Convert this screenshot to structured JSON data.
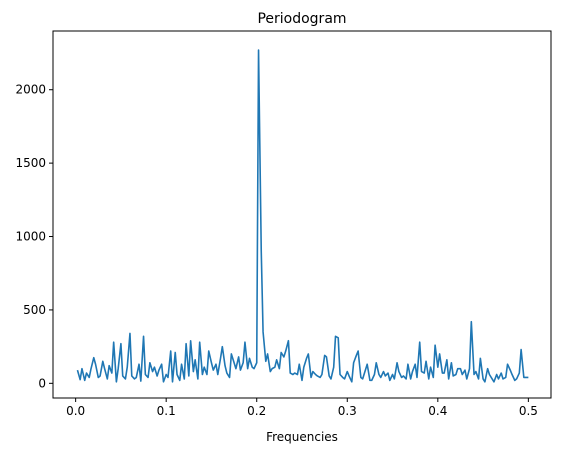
{
  "chart_data": {
    "type": "line",
    "title": "Periodogram",
    "xlabel": "Frequencies",
    "ylabel": "",
    "xlim": [
      -0.025,
      0.525
    ],
    "ylim": [
      -100,
      2400
    ],
    "xticks": [
      0.0,
      0.1,
      0.2,
      0.3,
      0.4,
      0.5
    ],
    "xtick_labels": [
      "0.0",
      "0.1",
      "0.2",
      "0.3",
      "0.4",
      "0.5"
    ],
    "yticks": [
      0,
      500,
      1000,
      1500,
      2000
    ],
    "ytick_labels": [
      "0",
      "500",
      "1000",
      "1500",
      "2000"
    ],
    "grid": false,
    "legend": "none",
    "line_color": "#1f77b4",
    "series": [
      {
        "x": [
          0.002,
          0.005,
          0.007,
          0.01,
          0.012,
          0.015,
          0.017,
          0.02,
          0.022,
          0.025,
          0.027,
          0.03,
          0.032,
          0.035,
          0.037,
          0.04,
          0.042,
          0.045,
          0.047,
          0.05,
          0.052,
          0.055,
          0.057,
          0.06,
          0.062,
          0.065,
          0.067,
          0.07,
          0.072,
          0.075,
          0.077,
          0.08,
          0.082,
          0.085,
          0.087,
          0.09,
          0.092,
          0.095,
          0.097,
          0.1,
          0.102,
          0.105,
          0.107,
          0.11,
          0.112,
          0.115,
          0.117,
          0.12,
          0.122,
          0.125,
          0.127,
          0.13,
          0.132,
          0.135,
          0.137,
          0.14,
          0.142,
          0.145,
          0.147,
          0.15,
          0.152,
          0.155,
          0.157,
          0.16,
          0.162,
          0.165,
          0.167,
          0.17,
          0.172,
          0.175,
          0.177,
          0.18,
          0.182,
          0.185,
          0.187,
          0.19,
          0.192,
          0.195,
          0.197,
          0.2,
          0.202,
          0.205,
          0.207,
          0.21,
          0.212,
          0.215,
          0.217,
          0.22,
          0.222,
          0.225,
          0.227,
          0.23,
          0.232,
          0.235,
          0.237,
          0.24,
          0.242,
          0.245,
          0.247,
          0.25,
          0.252,
          0.255,
          0.257,
          0.26,
          0.262,
          0.265,
          0.267,
          0.27,
          0.272,
          0.275,
          0.277,
          0.28,
          0.282,
          0.285,
          0.287,
          0.29,
          0.292,
          0.295,
          0.297,
          0.3,
          0.302,
          0.305,
          0.307,
          0.31,
          0.312,
          0.315,
          0.317,
          0.32,
          0.322,
          0.325,
          0.327,
          0.33,
          0.332,
          0.335,
          0.337,
          0.34,
          0.342,
          0.345,
          0.347,
          0.35,
          0.352,
          0.355,
          0.357,
          0.36,
          0.362,
          0.365,
          0.367,
          0.37,
          0.372,
          0.375,
          0.377,
          0.38,
          0.382,
          0.385,
          0.387,
          0.39,
          0.392,
          0.395,
          0.397,
          0.4,
          0.402,
          0.405,
          0.407,
          0.41,
          0.412,
          0.415,
          0.417,
          0.42,
          0.422,
          0.425,
          0.427,
          0.43,
          0.432,
          0.435,
          0.437,
          0.44,
          0.442,
          0.445,
          0.447,
          0.45,
          0.452,
          0.455,
          0.457,
          0.46,
          0.462,
          0.465,
          0.467,
          0.47,
          0.472,
          0.475,
          0.477,
          0.48,
          0.482,
          0.485,
          0.487,
          0.49,
          0.492,
          0.495,
          0.497,
          0.5
        ],
        "y": [
          90,
          25,
          100,
          20,
          70,
          40,
          100,
          175,
          130,
          40,
          50,
          150,
          100,
          30,
          120,
          70,
          280,
          10,
          100,
          270,
          50,
          30,
          110,
          340,
          50,
          30,
          40,
          130,
          15,
          320,
          60,
          40,
          140,
          80,
          110,
          50,
          90,
          130,
          10,
          60,
          40,
          220,
          10,
          210,
          60,
          20,
          130,
          30,
          270,
          50,
          290,
          80,
          160,
          30,
          280,
          60,
          110,
          60,
          220,
          140,
          90,
          130,
          60,
          170,
          250,
          120,
          70,
          40,
          200,
          140,
          100,
          180,
          90,
          140,
          280,
          100,
          170,
          110,
          100,
          140,
          2270,
          900,
          350,
          150,
          200,
          80,
          100,
          110,
          160,
          100,
          210,
          180,
          220,
          290,
          70,
          60,
          70,
          60,
          130,
          20,
          110,
          170,
          200,
          40,
          80,
          60,
          50,
          40,
          60,
          190,
          180,
          50,
          30,
          110,
          320,
          310,
          60,
          40,
          30,
          80,
          50,
          10,
          140,
          190,
          220,
          40,
          30,
          90,
          130,
          20,
          20,
          60,
          140,
          60,
          40,
          80,
          50,
          70,
          20,
          60,
          30,
          140,
          80,
          40,
          50,
          30,
          130,
          30,
          80,
          130,
          40,
          280,
          80,
          70,
          150,
          30,
          110,
          40,
          260,
          110,
          200,
          70,
          70,
          160,
          30,
          140,
          50,
          60,
          100,
          100,
          60,
          90,
          30,
          100,
          420,
          60,
          80,
          30,
          170,
          30,
          10,
          100,
          60,
          30,
          10,
          60,
          30,
          70,
          30,
          40,
          130,
          90,
          60,
          20,
          30,
          70,
          230,
          40,
          40,
          40
        ]
      }
    ]
  }
}
